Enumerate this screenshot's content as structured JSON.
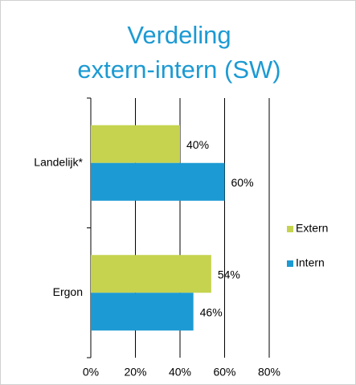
{
  "chart_data": {
    "type": "barh",
    "title": [
      "Verdeling",
      "extern-intern (SW)"
    ],
    "categories": [
      "Landelijk*",
      "Ergon"
    ],
    "series": [
      {
        "name": "Extern",
        "color": "#c5d34f",
        "values": [
          40,
          54
        ],
        "value_labels": [
          "40%",
          "54%"
        ]
      },
      {
        "name": "Intern",
        "color": "#1c9ad3",
        "values": [
          60,
          46
        ],
        "value_labels": [
          "60%",
          "46%"
        ]
      }
    ],
    "xlim": [
      0,
      80
    ],
    "xticks": [
      {
        "value": 0,
        "label": "0%"
      },
      {
        "value": 20,
        "label": "20%"
      },
      {
        "value": 40,
        "label": "40%"
      },
      {
        "value": 60,
        "label": "60%"
      },
      {
        "value": 80,
        "label": "80%"
      }
    ],
    "grid": true,
    "legend": "right"
  }
}
